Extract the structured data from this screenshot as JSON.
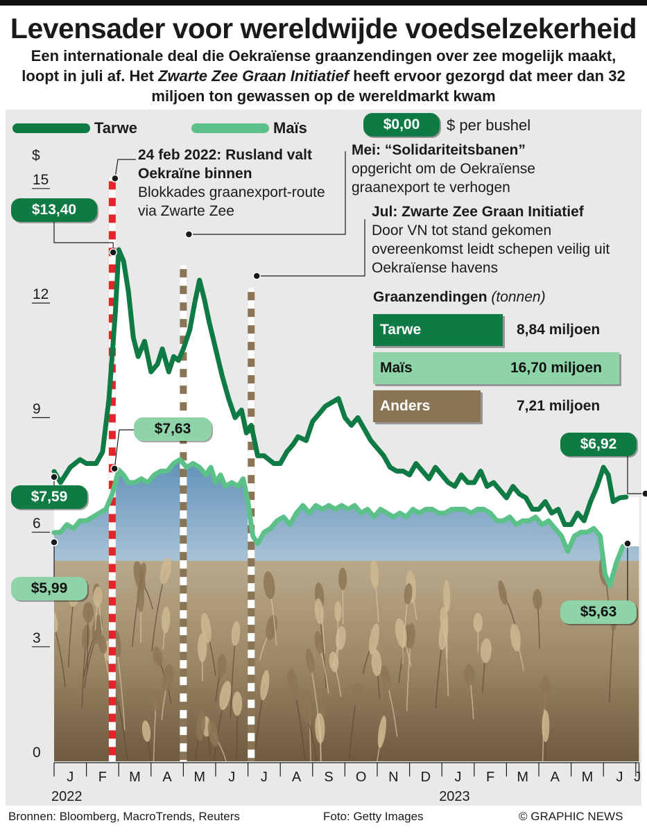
{
  "header": {
    "title": "Levensader voor wereldwijde voedselzekerheid",
    "subtitle_part1": "Een internationale deal die Oekraïense graanzendingen over zee mogelijk maakt, loopt in juli af. Het ",
    "subtitle_italic": "Zwarte Zee Graan Initiatief",
    "subtitle_part2": " heeft ervoor gezorgd dat meer dan 32 miljoen ton gewassen op de wereldmarkt kwam"
  },
  "legend": {
    "wheat_label": "Tarwe",
    "corn_label": "Maïs",
    "unit_pill": "$0,00",
    "unit_text": "$ per bushel"
  },
  "colors": {
    "wheat": "#0f7a43",
    "corn": "#5cc189",
    "invasion_line": "#e0252b",
    "event_line": "#8a7456",
    "other_bar": "#8a7456",
    "panel_bg": "#e9e9e9"
  },
  "callouts": {
    "wheat_start": "$7,59",
    "corn_start": "$5,99",
    "wheat_peak": "$13,40",
    "corn_peak": "$7,63",
    "wheat_end": "$6,92",
    "corn_end": "$5,63"
  },
  "annotations": {
    "invasion_title": "24 feb 2022: Rusland valt Oekraïne binnen",
    "invasion_body": "Blokkades graanexport-route via Zwarte Zee",
    "may_title_prefix": "Mei: ",
    "may_title_bold": "“Solidariteitsbanen”",
    "may_body": "opgericht om de Oekraïense graanexport te verhogen",
    "jul_title": "Jul: Zwarte Zee Graan Initiatief",
    "jul_body": "Door VN tot stand gekomen overeenkomst leidt schepen veilig uit Oekraïense havens"
  },
  "grain_shipments": {
    "title": "Graanzendingen",
    "unit": "(tonnen)",
    "items": [
      {
        "label": "Tarwe",
        "value": 8.84,
        "display": "8,84 miljoen",
        "color": "#0f7a43"
      },
      {
        "label": "Maïs",
        "value": 16.7,
        "display": "16,70 miljoen",
        "color": "#8fd3a8"
      },
      {
        "label": "Anders",
        "value": 7.21,
        "display": "7,21 miljoen",
        "color": "#8a7456"
      }
    ]
  },
  "chart_data": {
    "type": "line",
    "ylabel": "$",
    "ylim": [
      0,
      15
    ],
    "yticks": [
      0,
      3,
      6,
      9,
      12,
      15
    ],
    "months": [
      "J",
      "F",
      "M",
      "A",
      "M",
      "J",
      "J",
      "A",
      "S",
      "O",
      "N",
      "D",
      "J",
      "F",
      "M",
      "A",
      "M",
      "J",
      "J"
    ],
    "years": [
      {
        "label": "2022",
        "month_index": 0
      },
      {
        "label": "2023",
        "month_index": 12
      }
    ],
    "series": [
      {
        "name": "Tarwe",
        "points": [
          [
            0.0,
            7.59
          ],
          [
            0.2,
            7.3
          ],
          [
            0.5,
            7.7
          ],
          [
            0.8,
            7.9
          ],
          [
            1.0,
            7.8
          ],
          [
            1.3,
            7.8
          ],
          [
            1.5,
            8.1
          ],
          [
            1.7,
            9.5
          ],
          [
            1.9,
            11.8
          ],
          [
            2.0,
            13.4
          ],
          [
            2.15,
            13.1
          ],
          [
            2.3,
            12.3
          ],
          [
            2.45,
            11.1
          ],
          [
            2.6,
            10.6
          ],
          [
            2.8,
            11.0
          ],
          [
            3.0,
            10.2
          ],
          [
            3.2,
            10.4
          ],
          [
            3.35,
            10.8
          ],
          [
            3.55,
            10.2
          ],
          [
            3.7,
            10.6
          ],
          [
            3.85,
            10.5
          ],
          [
            4.0,
            10.8
          ],
          [
            4.2,
            11.3
          ],
          [
            4.35,
            12.0
          ],
          [
            4.5,
            12.6
          ],
          [
            4.65,
            12.1
          ],
          [
            4.8,
            11.5
          ],
          [
            5.0,
            10.8
          ],
          [
            5.2,
            10.1
          ],
          [
            5.4,
            9.5
          ],
          [
            5.6,
            9.0
          ],
          [
            5.8,
            9.2
          ],
          [
            5.95,
            8.6
          ],
          [
            6.1,
            8.8
          ],
          [
            6.3,
            8.0
          ],
          [
            6.5,
            8.0
          ],
          [
            6.8,
            7.8
          ],
          [
            7.0,
            7.8
          ],
          [
            7.2,
            8.1
          ],
          [
            7.4,
            8.3
          ],
          [
            7.55,
            8.5
          ],
          [
            7.8,
            8.4
          ],
          [
            8.0,
            8.9
          ],
          [
            8.2,
            9.1
          ],
          [
            8.4,
            9.3
          ],
          [
            8.6,
            9.4
          ],
          [
            8.8,
            9.5
          ],
          [
            9.0,
            9.0
          ],
          [
            9.2,
            8.8
          ],
          [
            9.4,
            9.0
          ],
          [
            9.6,
            8.7
          ],
          [
            9.8,
            8.4
          ],
          [
            10.0,
            8.2
          ],
          [
            10.2,
            8.0
          ],
          [
            10.4,
            7.7
          ],
          [
            10.6,
            7.6
          ],
          [
            10.8,
            7.6
          ],
          [
            11.0,
            7.5
          ],
          [
            11.2,
            7.8
          ],
          [
            11.4,
            7.6
          ],
          [
            11.6,
            7.4
          ],
          [
            11.8,
            7.7
          ],
          [
            12.0,
            7.5
          ],
          [
            12.2,
            7.3
          ],
          [
            12.4,
            7.2
          ],
          [
            12.6,
            7.5
          ],
          [
            12.8,
            7.3
          ],
          [
            13.0,
            7.3
          ],
          [
            13.2,
            7.6
          ],
          [
            13.4,
            7.2
          ],
          [
            13.6,
            7.3
          ],
          [
            13.8,
            7.1
          ],
          [
            14.0,
            6.9
          ],
          [
            14.2,
            7.2
          ],
          [
            14.4,
            7.0
          ],
          [
            14.6,
            6.9
          ],
          [
            14.8,
            6.6
          ],
          [
            15.0,
            6.6
          ],
          [
            15.2,
            6.8
          ],
          [
            15.4,
            6.5
          ],
          [
            15.6,
            6.6
          ],
          [
            15.8,
            6.2
          ],
          [
            16.0,
            6.2
          ],
          [
            16.2,
            6.5
          ],
          [
            16.4,
            6.3
          ],
          [
            16.6,
            6.8
          ],
          [
            16.8,
            7.2
          ],
          [
            17.0,
            7.7
          ],
          [
            17.15,
            7.5
          ],
          [
            17.3,
            6.8
          ],
          [
            17.5,
            6.9
          ],
          [
            17.7,
            6.92
          ]
        ]
      },
      {
        "name": "Maïs",
        "points": [
          [
            0.0,
            5.99
          ],
          [
            0.2,
            6.0
          ],
          [
            0.4,
            6.2
          ],
          [
            0.6,
            6.1
          ],
          [
            0.8,
            6.3
          ],
          [
            1.0,
            6.3
          ],
          [
            1.2,
            6.4
          ],
          [
            1.4,
            6.5
          ],
          [
            1.6,
            6.6
          ],
          [
            1.8,
            7.0
          ],
          [
            2.0,
            7.63
          ],
          [
            2.15,
            7.5
          ],
          [
            2.3,
            7.3
          ],
          [
            2.5,
            7.3
          ],
          [
            2.7,
            7.4
          ],
          [
            2.9,
            7.3
          ],
          [
            3.1,
            7.5
          ],
          [
            3.3,
            7.6
          ],
          [
            3.5,
            7.6
          ],
          [
            3.7,
            7.8
          ],
          [
            3.9,
            7.9
          ],
          [
            4.1,
            7.7
          ],
          [
            4.3,
            7.8
          ],
          [
            4.5,
            7.7
          ],
          [
            4.7,
            7.5
          ],
          [
            4.85,
            7.7
          ],
          [
            5.0,
            7.3
          ],
          [
            5.15,
            7.5
          ],
          [
            5.3,
            7.2
          ],
          [
            5.5,
            7.3
          ],
          [
            5.7,
            7.2
          ],
          [
            5.85,
            7.4
          ],
          [
            6.0,
            6.8
          ],
          [
            6.15,
            5.9
          ],
          [
            6.3,
            5.7
          ],
          [
            6.5,
            6.0
          ],
          [
            6.7,
            6.1
          ],
          [
            6.9,
            6.3
          ],
          [
            7.1,
            6.4
          ],
          [
            7.3,
            6.2
          ],
          [
            7.5,
            6.5
          ],
          [
            7.7,
            6.7
          ],
          [
            7.9,
            6.5
          ],
          [
            8.1,
            6.7
          ],
          [
            8.3,
            6.6
          ],
          [
            8.5,
            6.7
          ],
          [
            8.7,
            6.6
          ],
          [
            8.9,
            6.7
          ],
          [
            9.1,
            6.6
          ],
          [
            9.3,
            6.7
          ],
          [
            9.5,
            6.5
          ],
          [
            9.7,
            6.6
          ],
          [
            9.9,
            6.4
          ],
          [
            10.1,
            6.6
          ],
          [
            10.3,
            6.5
          ],
          [
            10.5,
            6.4
          ],
          [
            10.7,
            6.5
          ],
          [
            10.9,
            6.4
          ],
          [
            11.1,
            6.6
          ],
          [
            11.3,
            6.5
          ],
          [
            11.5,
            6.6
          ],
          [
            11.7,
            6.6
          ],
          [
            11.9,
            6.5
          ],
          [
            12.1,
            6.5
          ],
          [
            12.3,
            6.6
          ],
          [
            12.5,
            6.6
          ],
          [
            12.7,
            6.6
          ],
          [
            12.9,
            6.5
          ],
          [
            13.1,
            6.6
          ],
          [
            13.3,
            6.6
          ],
          [
            13.5,
            6.5
          ],
          [
            13.7,
            6.3
          ],
          [
            13.9,
            6.3
          ],
          [
            14.1,
            6.4
          ],
          [
            14.3,
            6.2
          ],
          [
            14.5,
            6.3
          ],
          [
            14.7,
            6.3
          ],
          [
            14.9,
            6.4
          ],
          [
            15.1,
            6.2
          ],
          [
            15.3,
            6.3
          ],
          [
            15.5,
            6.1
          ],
          [
            15.7,
            5.9
          ],
          [
            15.9,
            5.5
          ],
          [
            16.1,
            5.9
          ],
          [
            16.3,
            6.0
          ],
          [
            16.5,
            6.0
          ],
          [
            16.7,
            6.1
          ],
          [
            16.9,
            5.9
          ],
          [
            17.05,
            4.9
          ],
          [
            17.2,
            4.6
          ],
          [
            17.4,
            5.2
          ],
          [
            17.6,
            5.63
          ]
        ]
      }
    ],
    "events": [
      {
        "label": "24 feb 2022",
        "x": 1.8
      },
      {
        "label": "Mei",
        "x": 4.0
      },
      {
        "label": "Jul",
        "x": 6.1
      }
    ]
  },
  "footer": {
    "sources": "Bronnen: Bloomberg, MacroTrends, Reuters",
    "photo": "Foto: Getty Images",
    "credit": "© GRAPHIC NEWS"
  }
}
